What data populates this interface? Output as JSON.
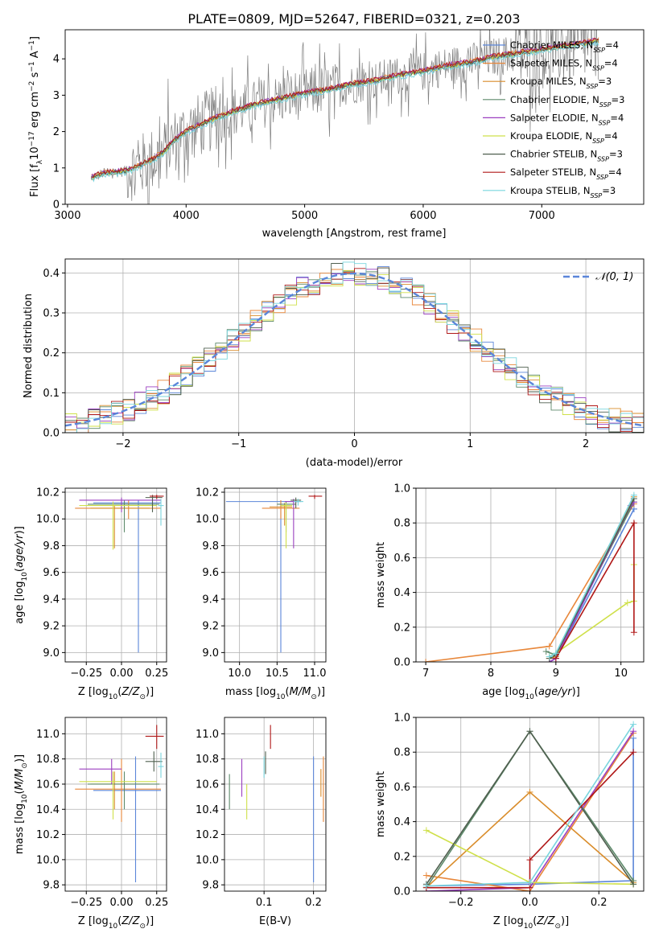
{
  "figure_title": "PLATE=0809, MJD=52647, FIBERID=0321, z=0.203",
  "colors": {
    "Chabrier MILES": "#5b86d9",
    "Salpeter MILES": "#e8873a",
    "Kroupa MILES": "#d98c2a",
    "Chabrier ELODIE": "#5e8a6b",
    "Salpeter ELODIE": "#9b3fc0",
    "Kroupa ELODIE": "#cfe04a",
    "Chabrier STELIB": "#4f5f4f",
    "Salpeter STELIB": "#b01818",
    "Kroupa STELIB": "#79d5de",
    "data": "#808080",
    "gaussian": "#5b86d9"
  },
  "chart_data": [
    {
      "type": "line",
      "title": "PLATE=0809, MJD=52647, FIBERID=0321, z=0.203",
      "xlabel": "wavelength [Angstrom, rest frame]",
      "ylabel": "Flux [f_λ 10^-17 erg cm^-2 s^-1 A^-1]",
      "xlim": [
        2980,
        7860
      ],
      "ylim": [
        0,
        4.8
      ],
      "xticks": [
        3000,
        4000,
        5000,
        6000,
        7000
      ],
      "yticks": [
        0,
        1,
        2,
        3,
        4
      ],
      "legend_position": "top-right",
      "legend": [
        {
          "name": "Chabrier MILES",
          "sub": "N",
          "ssp": "SSP",
          "n": "=4"
        },
        {
          "name": "Salpeter MILES",
          "sub": "N",
          "ssp": "SSP",
          "n": "=4"
        },
        {
          "name": "Kroupa MILES",
          "sub": "N",
          "ssp": "SSP",
          "n": "=3"
        },
        {
          "name": "Chabrier ELODIE",
          "sub": "N",
          "ssp": "SSP",
          "n": "=3"
        },
        {
          "name": "Salpeter ELODIE",
          "sub": "N",
          "ssp": "SSP",
          "n": "=4"
        },
        {
          "name": "Kroupa ELODIE",
          "sub": "N",
          "ssp": "SSP",
          "n": "=4"
        },
        {
          "name": "Chabrier STELIB",
          "sub": "N",
          "ssp": "SSP",
          "n": "=3"
        },
        {
          "name": "Salpeter STELIB",
          "sub": "N",
          "ssp": "SSP",
          "n": "=4"
        },
        {
          "name": "Kroupa STELIB",
          "sub": "N",
          "ssp": "SSP",
          "n": "=3"
        }
      ],
      "model_continuum": [
        [
          3200,
          0.72
        ],
        [
          3300,
          0.85
        ],
        [
          3400,
          0.88
        ],
        [
          3500,
          0.92
        ],
        [
          3600,
          1.05
        ],
        [
          3700,
          1.2
        ],
        [
          3800,
          1.4
        ],
        [
          3900,
          1.75
        ],
        [
          4000,
          2.0
        ],
        [
          4200,
          2.3
        ],
        [
          4400,
          2.55
        ],
        [
          4600,
          2.75
        ],
        [
          4800,
          2.9
        ],
        [
          5000,
          3.05
        ],
        [
          5200,
          3.15
        ],
        [
          5400,
          3.3
        ],
        [
          5600,
          3.4
        ],
        [
          5800,
          3.55
        ],
        [
          6000,
          3.65
        ],
        [
          6200,
          3.8
        ],
        [
          6400,
          3.9
        ],
        [
          6600,
          4.05
        ],
        [
          6800,
          4.15
        ],
        [
          7000,
          4.25
        ],
        [
          7200,
          4.35
        ],
        [
          7400,
          4.45
        ],
        [
          7500,
          4.5
        ]
      ]
    },
    {
      "type": "line",
      "xlabel": "(data-model)/error",
      "ylabel": "Normed distribution",
      "xlim": [
        -2.5,
        2.5
      ],
      "ylim": [
        0,
        0.435
      ],
      "xticks": [
        -2,
        -1,
        0,
        1,
        2
      ],
      "yticks": [
        0.0,
        0.1,
        0.2,
        0.3,
        0.4
      ],
      "legend_position": "top-right",
      "gaussian_label": "𝒩(0, 1)",
      "bin_width": 0.1
    },
    {
      "type": "scatter",
      "xlabel": "Z [log10(Z/Z⊙)]",
      "ylabel": "age  [log10(age/yr)]",
      "xlim": [
        -0.4,
        0.32
      ],
      "ylim": [
        8.93,
        10.23
      ],
      "xticks": [
        -0.25,
        0.0,
        0.25
      ],
      "yticks": [
        9.0,
        9.2,
        9.4,
        9.6,
        9.8,
        10.0,
        10.2
      ],
      "points": [
        {
          "s": "Chabrier MILES",
          "x": 0.12,
          "y": 10.12,
          "xe": [
            -0.2,
            0.28
          ],
          "ye": [
            9.0,
            10.14
          ]
        },
        {
          "s": "Salpeter MILES",
          "x": 0.05,
          "y": 10.08,
          "xe": [
            -0.33,
            0.28
          ],
          "ye": [
            10.0,
            10.14
          ]
        },
        {
          "s": "Kroupa MILES",
          "x": -0.05,
          "y": 10.08,
          "xe": [
            -0.22,
            0.2
          ],
          "ye": [
            9.78,
            10.1
          ]
        },
        {
          "s": "Chabrier ELODIE",
          "x": 0.02,
          "y": 10.11,
          "xe": [
            -0.24,
            0.27
          ],
          "ye": [
            9.9,
            10.14
          ]
        },
        {
          "s": "Salpeter ELODIE",
          "x": 0.0,
          "y": 10.14,
          "xe": [
            -0.3,
            0.28
          ],
          "ye": [
            10.05,
            10.16
          ]
        },
        {
          "s": "Kroupa ELODIE",
          "x": -0.06,
          "y": 10.1,
          "xe": [
            -0.3,
            0.25
          ],
          "ye": [
            9.77,
            10.13
          ]
        },
        {
          "s": "Chabrier STELIB",
          "x": 0.22,
          "y": 10.16,
          "xe": [
            0.17,
            0.29
          ],
          "ye": [
            10.05,
            10.18
          ]
        },
        {
          "s": "Salpeter STELIB",
          "x": 0.25,
          "y": 10.17,
          "xe": [
            0.2,
            0.3
          ],
          "ye": [
            10.15,
            10.18
          ]
        },
        {
          "s": "Kroupa STELIB",
          "x": 0.28,
          "y": 10.1,
          "xe": [
            0.26,
            0.3
          ],
          "ye": [
            9.95,
            10.15
          ]
        }
      ]
    },
    {
      "type": "scatter",
      "xlabel": "mass [log10(M/M⊙)]",
      "ylabel": "",
      "xlim": [
        9.8,
        11.15
      ],
      "ylim": [
        8.93,
        10.23
      ],
      "xticks": [
        10.0,
        10.5,
        11.0
      ],
      "yticks": [
        9.0,
        9.2,
        9.4,
        9.6,
        9.8,
        10.0,
        10.2
      ],
      "points": [
        {
          "s": "Chabrier MILES",
          "x": 10.55,
          "y": 10.13,
          "xe": [
            9.82,
            10.82
          ],
          "ye": [
            9.0,
            10.14
          ]
        },
        {
          "s": "Salpeter MILES",
          "x": 10.55,
          "y": 10.08,
          "xe": [
            10.3,
            10.8
          ],
          "ye": [
            10.0,
            10.14
          ]
        },
        {
          "s": "Kroupa MILES",
          "x": 10.6,
          "y": 10.09,
          "xe": [
            10.4,
            10.7
          ],
          "ye": [
            9.95,
            10.12
          ]
        },
        {
          "s": "Chabrier ELODIE",
          "x": 10.62,
          "y": 10.11,
          "xe": [
            10.5,
            10.75
          ],
          "ye": [
            9.9,
            10.13
          ]
        },
        {
          "s": "Salpeter ELODIE",
          "x": 10.72,
          "y": 10.13,
          "xe": [
            10.6,
            10.78
          ],
          "ye": [
            9.78,
            10.15
          ]
        },
        {
          "s": "Kroupa ELODIE",
          "x": 10.62,
          "y": 10.1,
          "xe": [
            10.55,
            10.7
          ],
          "ye": [
            9.78,
            10.12
          ]
        },
        {
          "s": "Chabrier STELIB",
          "x": 10.75,
          "y": 10.14,
          "xe": [
            10.68,
            10.82
          ],
          "ye": [
            10.08,
            10.16
          ]
        },
        {
          "s": "Salpeter STELIB",
          "x": 11.0,
          "y": 10.17,
          "xe": [
            10.92,
            11.1
          ],
          "ye": [
            10.15,
            10.18
          ]
        },
        {
          "s": "Kroupa STELIB",
          "x": 10.78,
          "y": 10.13,
          "xe": [
            10.72,
            10.85
          ],
          "ye": [
            10.1,
            10.15
          ]
        }
      ]
    },
    {
      "type": "line",
      "xlabel": "age  [log10(age/yr)]",
      "ylabel": "mass weight",
      "xlim": [
        6.85,
        10.35
      ],
      "ylim": [
        0,
        1.0
      ],
      "xticks": [
        7,
        8,
        9,
        10
      ],
      "yticks": [
        0.0,
        0.2,
        0.4,
        0.6,
        0.8,
        1.0
      ],
      "series": [
        {
          "s": "Chabrier MILES",
          "x": [
            8.9,
            9.0,
            10.2,
            10.2
          ],
          "y": [
            0.0,
            0.02,
            0.88,
            0.88
          ]
        },
        {
          "s": "Salpeter MILES",
          "x": [
            7.0,
            8.9,
            10.2
          ],
          "y": [
            0.0,
            0.09,
            0.91
          ]
        },
        {
          "s": "Kroupa MILES",
          "x": [
            8.9,
            9.0,
            10.2
          ],
          "y": [
            0.02,
            0.03,
            0.95
          ]
        },
        {
          "s": "Chabrier ELODIE",
          "x": [
            8.85,
            9.0,
            10.2
          ],
          "y": [
            0.06,
            0.04,
            0.92
          ]
        },
        {
          "s": "Salpeter ELODIE",
          "x": [
            8.9,
            9.0,
            10.15,
            10.2
          ],
          "y": [
            0.0,
            0.02,
            0.9,
            0.92
          ]
        },
        {
          "s": "Kroupa ELODIE",
          "x": [
            8.9,
            9.0,
            10.1,
            10.2,
            10.2
          ],
          "y": [
            0.03,
            0.05,
            0.34,
            0.35,
            0.56
          ]
        },
        {
          "s": "Chabrier STELIB",
          "x": [
            8.9,
            9.0,
            10.2
          ],
          "y": [
            0.02,
            0.04,
            0.94
          ]
        },
        {
          "s": "Salpeter STELIB",
          "x": [
            9.0,
            10.2,
            10.2
          ],
          "y": [
            0.02,
            0.8,
            0.17
          ]
        },
        {
          "s": "Kroupa STELIB",
          "x": [
            8.9,
            9.0,
            10.2
          ],
          "y": [
            0.03,
            0.05,
            0.96
          ]
        }
      ]
    },
    {
      "type": "scatter",
      "xlabel": "Z [log10(Z/Z⊙)]",
      "ylabel": "mass [log10(M/M⊙)]",
      "xlim": [
        -0.4,
        0.32
      ],
      "ylim": [
        9.75,
        11.13
      ],
      "xticks": [
        -0.25,
        0.0,
        0.25
      ],
      "yticks": [
        9.8,
        10.0,
        10.2,
        10.4,
        10.6,
        10.8,
        11.0
      ],
      "points": [
        {
          "s": "Chabrier MILES",
          "x": 0.1,
          "y": 10.55,
          "xe": [
            -0.2,
            0.28
          ],
          "ye": [
            9.82,
            10.82
          ]
        },
        {
          "s": "Salpeter MILES",
          "x": 0.0,
          "y": 10.56,
          "xe": [
            -0.33,
            0.28
          ],
          "ye": [
            10.3,
            10.8
          ]
        },
        {
          "s": "Kroupa MILES",
          "x": -0.05,
          "y": 10.6,
          "xe": [
            -0.22,
            0.2
          ],
          "ye": [
            10.4,
            10.7
          ]
        },
        {
          "s": "Chabrier ELODIE",
          "x": 0.02,
          "y": 10.6,
          "xe": [
            -0.24,
            0.27
          ],
          "ye": [
            10.4,
            10.7
          ]
        },
        {
          "s": "Salpeter ELODIE",
          "x": -0.07,
          "y": 10.72,
          "xe": [
            -0.3,
            0.0
          ],
          "ye": [
            10.6,
            10.8
          ]
        },
        {
          "s": "Kroupa ELODIE",
          "x": -0.06,
          "y": 10.62,
          "xe": [
            -0.3,
            0.25
          ],
          "ye": [
            10.32,
            10.7
          ]
        },
        {
          "s": "Chabrier STELIB",
          "x": 0.23,
          "y": 10.78,
          "xe": [
            0.17,
            0.29
          ],
          "ye": [
            10.7,
            10.86
          ]
        },
        {
          "s": "Salpeter STELIB",
          "x": 0.25,
          "y": 10.98,
          "xe": [
            0.17,
            0.3
          ],
          "ye": [
            10.88,
            11.07
          ]
        },
        {
          "s": "Kroupa STELIB",
          "x": 0.28,
          "y": 10.74,
          "xe": [
            0.26,
            0.3
          ],
          "ye": [
            10.65,
            10.85
          ]
        }
      ]
    },
    {
      "type": "scatter",
      "xlabel": "E(B-V)",
      "ylabel": "",
      "xlim": [
        0.02,
        0.225
      ],
      "ylim": [
        9.75,
        11.13
      ],
      "xticks": [
        0.1,
        0.2
      ],
      "yticks": [
        9.8,
        10.0,
        10.2,
        10.4,
        10.6,
        10.8,
        11.0
      ],
      "points": [
        {
          "s": "Chabrier MILES",
          "x": 0.2,
          "ye": [
            9.82,
            10.82
          ]
        },
        {
          "s": "Salpeter MILES",
          "x": 0.22,
          "ye": [
            10.3,
            10.82
          ]
        },
        {
          "s": "Kroupa MILES",
          "x": 0.215,
          "ye": [
            10.5,
            10.72
          ]
        },
        {
          "s": "Chabrier ELODIE",
          "x": 0.03,
          "ye": [
            10.4,
            10.68
          ]
        },
        {
          "s": "Salpeter ELODIE",
          "x": 0.055,
          "ye": [
            10.5,
            10.8
          ]
        },
        {
          "s": "Kroupa ELODIE",
          "x": 0.065,
          "ye": [
            10.32,
            10.6
          ]
        },
        {
          "s": "Chabrier STELIB",
          "x": 0.103,
          "ye": [
            10.68,
            10.86
          ]
        },
        {
          "s": "Salpeter STELIB",
          "x": 0.113,
          "ye": [
            10.88,
            11.07
          ]
        },
        {
          "s": "Kroupa STELIB",
          "x": 0.1,
          "ye": [
            10.65,
            10.82
          ]
        }
      ]
    },
    {
      "type": "line",
      "xlabel": "Z [log10(Z/Z⊙)]",
      "ylabel": "mass weight",
      "xlim": [
        -0.33,
        0.33
      ],
      "ylim": [
        0,
        1.0
      ],
      "xticks": [
        -0.2,
        0.0,
        0.2
      ],
      "yticks": [
        0.0,
        0.2,
        0.4,
        0.6,
        0.8,
        1.0
      ],
      "series": [
        {
          "s": "Chabrier MILES",
          "x": [
            -0.3,
            0.0,
            0.3,
            0.3
          ],
          "y": [
            0.03,
            0.04,
            0.06,
            0.88
          ]
        },
        {
          "s": "Salpeter MILES",
          "x": [
            -0.3,
            0.0,
            0.3
          ],
          "y": [
            0.09,
            0.0,
            0.91
          ]
        },
        {
          "s": "Kroupa MILES",
          "x": [
            -0.3,
            0.0,
            0.3
          ],
          "y": [
            0.02,
            0.57,
            0.05
          ]
        },
        {
          "s": "Chabrier ELODIE",
          "x": [
            -0.3,
            0.0,
            0.3
          ],
          "y": [
            0.02,
            0.92,
            0.06
          ]
        },
        {
          "s": "Salpeter ELODIE",
          "x": [
            -0.3,
            0.0,
            0.3
          ],
          "y": [
            0.0,
            0.02,
            0.92
          ]
        },
        {
          "s": "Kroupa ELODIE",
          "x": [
            -0.3,
            0.0,
            0.3
          ],
          "y": [
            0.35,
            0.05,
            0.04
          ]
        },
        {
          "s": "Chabrier STELIB",
          "x": [
            -0.3,
            0.0,
            0.3
          ],
          "y": [
            0.04,
            0.92,
            0.04
          ]
        },
        {
          "s": "Salpeter STELIB",
          "x": [
            -0.3,
            0.0,
            0.0,
            0.3
          ],
          "y": [
            0.02,
            0.02,
            0.18,
            0.8
          ]
        },
        {
          "s": "Kroupa STELIB",
          "x": [
            -0.3,
            0.0,
            0.3
          ],
          "y": [
            0.03,
            0.05,
            0.96
          ]
        }
      ]
    }
  ]
}
